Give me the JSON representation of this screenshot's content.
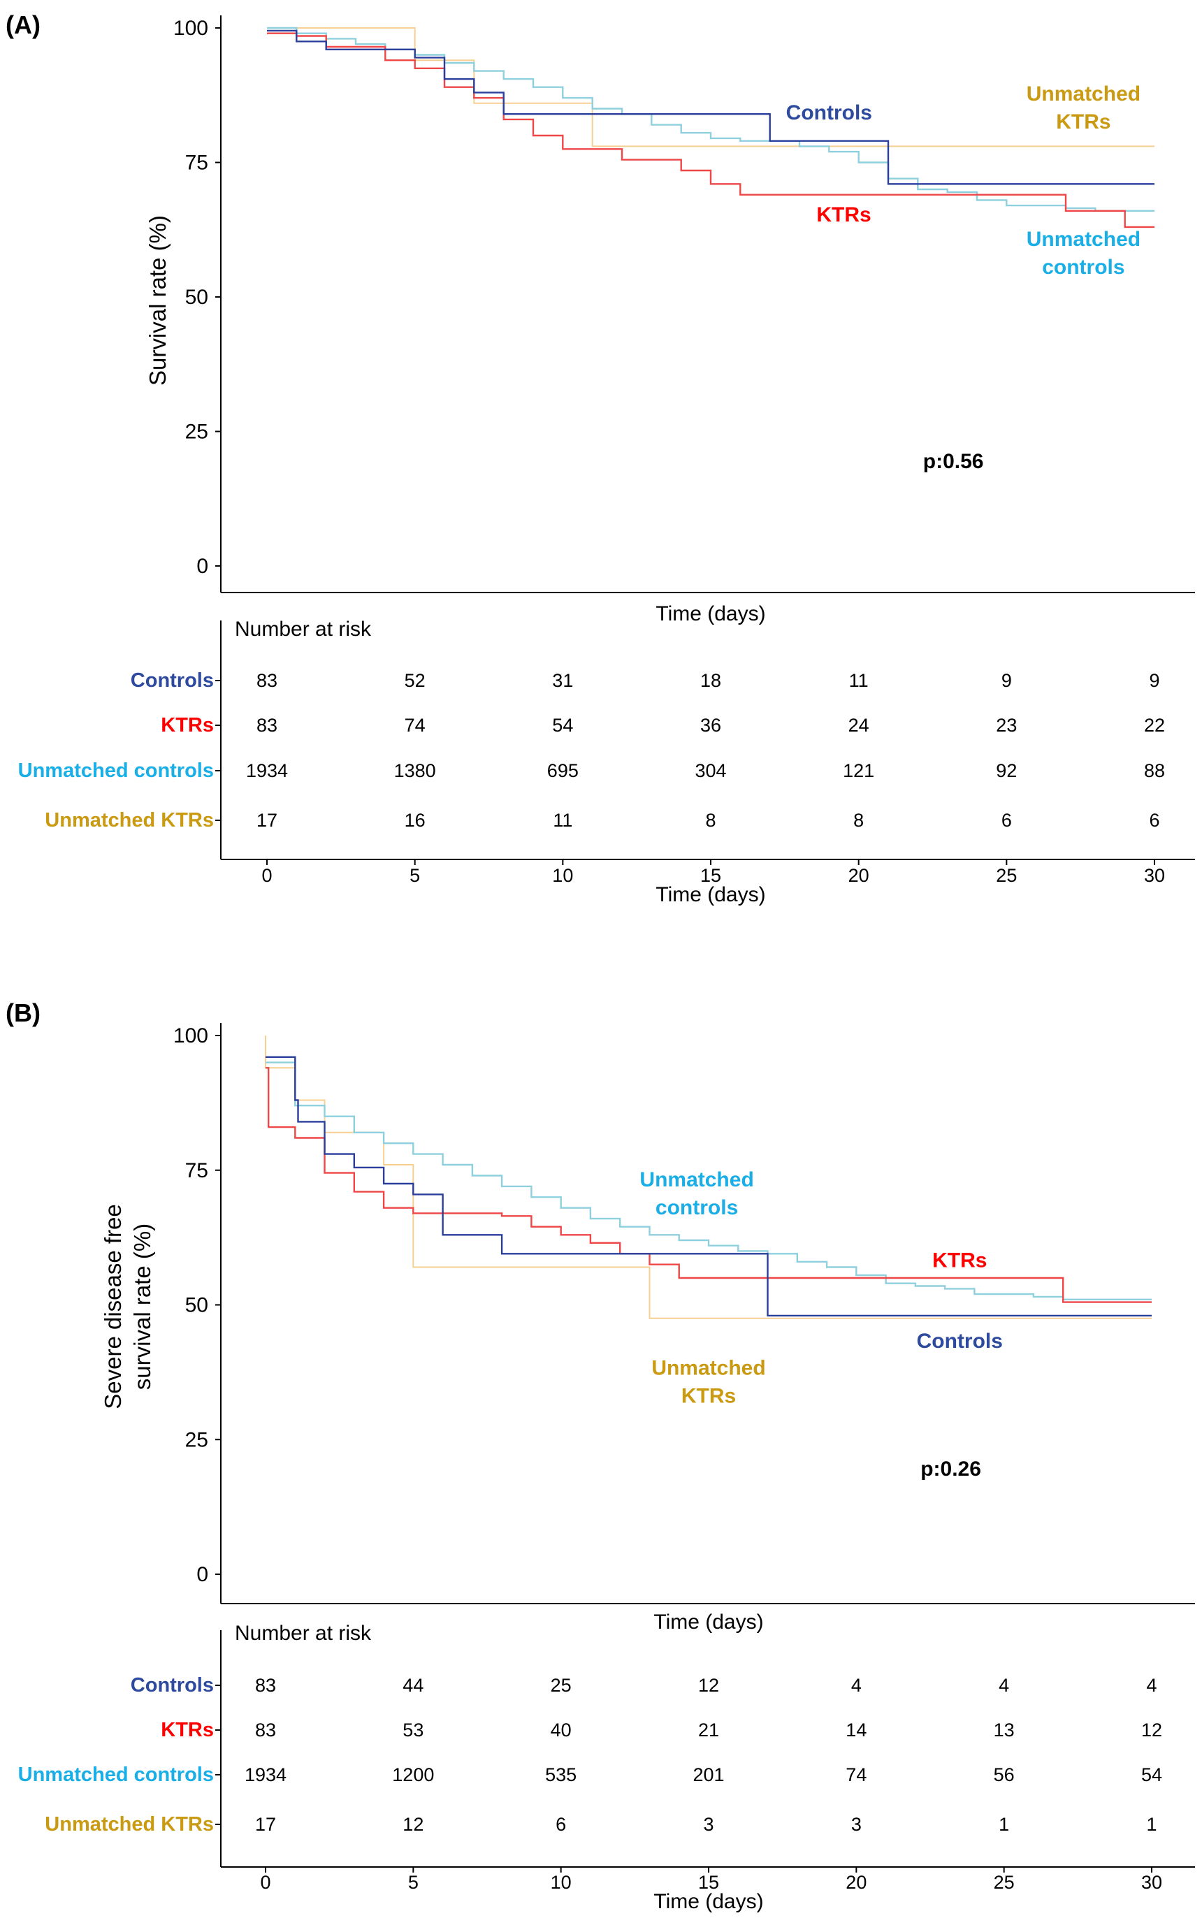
{
  "colors": {
    "controls": "#2a3f9c",
    "ktrs": "#ef4747",
    "unmatched_controls": "#8fd0de",
    "unmatched_ktrs": "#f7cf93",
    "label_controls": "#2e4a9e",
    "label_ktrs": "#ff0000",
    "label_unmatched_controls": "#19aee6",
    "label_unmatched_ktrs": "#c99a12"
  },
  "chart_data": [
    {
      "panel": "(A)",
      "type": "line",
      "step": true,
      "xlabel": "Time (days)",
      "ylabel_lines": [
        "Survival rate (%)"
      ],
      "xlim": [
        0,
        30
      ],
      "ylim": [
        0,
        100
      ],
      "yticks": [
        0,
        25,
        50,
        75,
        100
      ],
      "xticks": [
        0,
        5,
        10,
        15,
        20,
        25,
        30
      ],
      "annotation": "p:0.56",
      "curve_labels": [
        {
          "series": "controls",
          "lines": [
            "Controls"
          ],
          "anchor": [
            19,
            83
          ],
          "align": "middle"
        },
        {
          "series": "ktrs",
          "lines": [
            "KTRs"
          ],
          "anchor": [
            19.5,
            64
          ],
          "align": "middle"
        },
        {
          "series": "unmatched_ktrs",
          "lines": [
            "Unmatched",
            "KTRs"
          ],
          "anchor": [
            27.6,
            86.5
          ],
          "align": "middle"
        },
        {
          "series": "unmatched_controls",
          "lines": [
            "Unmatched",
            "controls"
          ],
          "anchor": [
            27.6,
            59.5
          ],
          "align": "middle"
        }
      ],
      "series": [
        {
          "key": "controls",
          "name": "Controls",
          "points": [
            [
              0,
              99.5
            ],
            [
              1,
              97.5
            ],
            [
              2,
              96
            ],
            [
              3,
              96
            ],
            [
              5,
              94.5
            ],
            [
              6,
              90.5
            ],
            [
              7,
              88
            ],
            [
              8,
              84
            ],
            [
              9,
              84
            ],
            [
              17,
              79
            ],
            [
              21,
              71
            ],
            [
              30,
              71
            ]
          ]
        },
        {
          "key": "ktrs",
          "name": "KTRs",
          "points": [
            [
              0,
              99
            ],
            [
              1,
              98.5
            ],
            [
              2,
              96.5
            ],
            [
              4,
              94
            ],
            [
              5,
              92.5
            ],
            [
              6,
              89
            ],
            [
              7,
              87
            ],
            [
              8,
              83
            ],
            [
              9,
              80
            ],
            [
              10,
              77.5
            ],
            [
              12,
              75.5
            ],
            [
              14,
              73.5
            ],
            [
              15,
              71
            ],
            [
              16,
              69
            ],
            [
              20,
              69
            ],
            [
              27,
              66
            ],
            [
              29,
              63
            ],
            [
              30,
              63
            ]
          ]
        },
        {
          "key": "unmatched_controls",
          "name": "Unmatched controls",
          "points": [
            [
              0,
              100
            ],
            [
              1,
              99
            ],
            [
              2,
              98
            ],
            [
              3,
              97
            ],
            [
              4,
              96
            ],
            [
              5,
              95
            ],
            [
              6,
              93.5
            ],
            [
              7,
              92
            ],
            [
              8,
              90.5
            ],
            [
              9,
              89
            ],
            [
              10,
              87
            ],
            [
              11,
              85
            ],
            [
              12,
              84
            ],
            [
              13,
              82
            ],
            [
              14,
              80.5
            ],
            [
              15,
              79.5
            ],
            [
              16,
              79
            ],
            [
              18,
              78
            ],
            [
              19,
              77
            ],
            [
              20,
              75
            ],
            [
              21,
              72
            ],
            [
              22,
              70
            ],
            [
              23,
              69.5
            ],
            [
              24,
              68
            ],
            [
              25,
              67
            ],
            [
              26,
              67
            ],
            [
              27,
              66.5
            ],
            [
              28,
              66
            ],
            [
              30,
              66
            ]
          ]
        },
        {
          "key": "unmatched_ktrs",
          "name": "Unmatched KTRs",
          "points": [
            [
              0,
              100
            ],
            [
              5,
              100
            ],
            [
              5,
              94
            ],
            [
              7,
              94
            ],
            [
              7,
              86
            ],
            [
              11,
              86
            ],
            [
              11,
              78
            ],
            [
              30,
              78
            ]
          ]
        }
      ],
      "risk_table": {
        "title": "Number at risk",
        "xlabel": "Time (days)",
        "rows": [
          {
            "key": "controls",
            "label": "Controls",
            "values": [
              "83",
              "52",
              "31",
              "18",
              "11",
              "9",
              "9"
            ]
          },
          {
            "key": "ktrs",
            "label": "KTRs",
            "values": [
              "83",
              "74",
              "54",
              "36",
              "24",
              "23",
              "22"
            ]
          },
          {
            "key": "unmatched_controls",
            "label": "Unmatched controls",
            "values": [
              "1934",
              "1380",
              "695",
              "304",
              "121",
              "92",
              "88"
            ]
          },
          {
            "key": "unmatched_ktrs",
            "label": "Unmatched KTRs",
            "values": [
              "17",
              "16",
              "11",
              "8",
              "8",
              "6",
              "6"
            ]
          }
        ]
      }
    },
    {
      "panel": "(B)",
      "type": "line",
      "step": true,
      "xlabel": "Time (days)",
      "ylabel_lines": [
        "Severe disease free",
        "survival rate (%)"
      ],
      "xlim": [
        0,
        30
      ],
      "ylim": [
        0,
        100
      ],
      "yticks": [
        0,
        25,
        50,
        75,
        100
      ],
      "xticks": [
        0,
        5,
        10,
        15,
        20,
        25,
        30
      ],
      "annotation": "p:0.26",
      "curve_labels": [
        {
          "series": "unmatched_controls",
          "lines": [
            "Unmatched",
            "controls"
          ],
          "anchor": [
            14.6,
            72
          ],
          "align": "middle"
        },
        {
          "series": "ktrs",
          "lines": [
            "KTRs"
          ],
          "anchor": [
            23.5,
            57
          ],
          "align": "middle"
        },
        {
          "series": "unmatched_ktrs",
          "lines": [
            "Unmatched",
            "KTRs"
          ],
          "anchor": [
            15,
            37
          ],
          "align": "middle"
        },
        {
          "series": "controls",
          "lines": [
            "Controls"
          ],
          "anchor": [
            23.5,
            42
          ],
          "align": "middle"
        }
      ],
      "series": [
        {
          "key": "controls",
          "name": "Controls",
          "points": [
            [
              0,
              96
            ],
            [
              1,
              96
            ],
            [
              1,
              88
            ],
            [
              1.1,
              84
            ],
            [
              2,
              84
            ],
            [
              2,
              78
            ],
            [
              3,
              75.5
            ],
            [
              4,
              72.5
            ],
            [
              5,
              70.5
            ],
            [
              6,
              63
            ],
            [
              8,
              59.5
            ],
            [
              17,
              59.5
            ],
            [
              17,
              48
            ],
            [
              30,
              48
            ]
          ]
        },
        {
          "key": "ktrs",
          "name": "KTRs",
          "points": [
            [
              0,
              94
            ],
            [
              0.1,
              83
            ],
            [
              1,
              81
            ],
            [
              2,
              74.5
            ],
            [
              3,
              71
            ],
            [
              4,
              68
            ],
            [
              5,
              67
            ],
            [
              8,
              66.5
            ],
            [
              9,
              64.5
            ],
            [
              10,
              63
            ],
            [
              11,
              61.5
            ],
            [
              12,
              59.5
            ],
            [
              13,
              57.5
            ],
            [
              14,
              55
            ],
            [
              15,
              55
            ],
            [
              27,
              55
            ],
            [
              27,
              50.5
            ],
            [
              30,
              50.5
            ]
          ]
        },
        {
          "key": "unmatched_controls",
          "name": "Unmatched controls",
          "points": [
            [
              0,
              95
            ],
            [
              1,
              95
            ],
            [
              1,
              87
            ],
            [
              2,
              85
            ],
            [
              3,
              82
            ],
            [
              4,
              80
            ],
            [
              5,
              78
            ],
            [
              6,
              76
            ],
            [
              7,
              74
            ],
            [
              8,
              72
            ],
            [
              9,
              70
            ],
            [
              10,
              68
            ],
            [
              11,
              66
            ],
            [
              12,
              64.5
            ],
            [
              13,
              63
            ],
            [
              14,
              62
            ],
            [
              15,
              61
            ],
            [
              16,
              60
            ],
            [
              17,
              59.5
            ],
            [
              18,
              58
            ],
            [
              19,
              57
            ],
            [
              20,
              55.5
            ],
            [
              21,
              54
            ],
            [
              22,
              53.5
            ],
            [
              23,
              53
            ],
            [
              24,
              52
            ],
            [
              25,
              52
            ],
            [
              26,
              51.5
            ],
            [
              27,
              51
            ],
            [
              30,
              51
            ]
          ]
        },
        {
          "key": "unmatched_ktrs",
          "name": "Unmatched KTRs",
          "points": [
            [
              0,
              100
            ],
            [
              0,
              94
            ],
            [
              1,
              94
            ],
            [
              1,
              88
            ],
            [
              2,
              88
            ],
            [
              2,
              82
            ],
            [
              4,
              82
            ],
            [
              4,
              76
            ],
            [
              5,
              76
            ],
            [
              5,
              57
            ],
            [
              13,
              57
            ],
            [
              13,
              47.5
            ],
            [
              30,
              47.5
            ]
          ]
        }
      ],
      "risk_table": {
        "title": "Number at risk",
        "xlabel": "Time (days)",
        "rows": [
          {
            "key": "controls",
            "label": "Controls",
            "values": [
              "83",
              "44",
              "25",
              "12",
              "4",
              "4",
              "4"
            ]
          },
          {
            "key": "ktrs",
            "label": "KTRs",
            "values": [
              "83",
              "53",
              "40",
              "21",
              "14",
              "13",
              "12"
            ]
          },
          {
            "key": "unmatched_controls",
            "label": "Unmatched controls",
            "values": [
              "1934",
              "1200",
              "535",
              "201",
              "74",
              "56",
              "54"
            ]
          },
          {
            "key": "unmatched_ktrs",
            "label": "Unmatched KTRs",
            "values": [
              "17",
              "12",
              "6",
              "3",
              "3",
              "1",
              "1"
            ]
          }
        ]
      }
    }
  ]
}
